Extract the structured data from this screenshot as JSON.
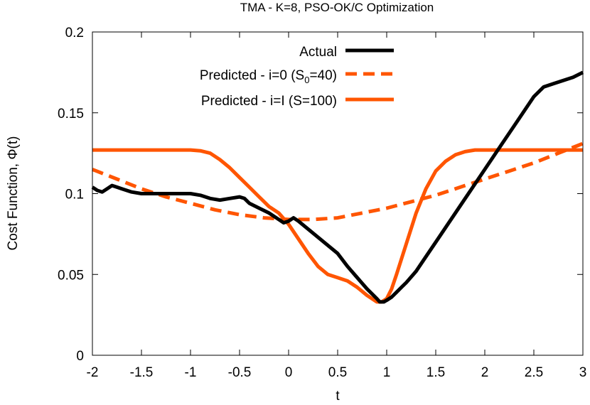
{
  "chart_data": {
    "type": "line",
    "title": "TMA - K=8, PSO-OK/C Optimization",
    "xlabel": "t",
    "ylabel": "Cost Function, Φ(t)",
    "xlim": [
      -2,
      3
    ],
    "ylim": [
      0,
      0.2
    ],
    "x_ticks": [
      -2,
      -1.5,
      -1,
      -0.5,
      0,
      0.5,
      1,
      1.5,
      2,
      2.5,
      3
    ],
    "x_tick_labels": [
      "-2",
      "-1.5",
      "-1",
      "-0.5",
      "0",
      "0.5",
      "1",
      "1.5",
      "2",
      "2.5",
      "3"
    ],
    "y_ticks": [
      0,
      0.05,
      0.1,
      0.15,
      0.2
    ],
    "y_tick_labels": [
      "0",
      "0.05",
      "0.1",
      "0.15",
      "0.2"
    ],
    "grid": false,
    "legend_position": "top-right",
    "series": [
      {
        "name": "Actual",
        "color": "#000000",
        "style": "solid",
        "x": [
          -2.0,
          -1.95,
          -1.9,
          -1.85,
          -1.8,
          -1.75,
          -1.7,
          -1.6,
          -1.5,
          -1.4,
          -1.3,
          -1.2,
          -1.1,
          -1.0,
          -0.9,
          -0.8,
          -0.7,
          -0.6,
          -0.5,
          -0.45,
          -0.4,
          -0.3,
          -0.2,
          -0.1,
          -0.05,
          0.0,
          0.05,
          0.1,
          0.2,
          0.3,
          0.4,
          0.5,
          0.6,
          0.7,
          0.8,
          0.9,
          0.93,
          0.97,
          1.0,
          1.05,
          1.1,
          1.15,
          1.2,
          1.3,
          1.4,
          1.5,
          1.6,
          1.7,
          1.8,
          1.9,
          2.0,
          2.1,
          2.2,
          2.3,
          2.4,
          2.5,
          2.6,
          2.7,
          2.8,
          2.9,
          3.0
        ],
        "y": [
          0.104,
          0.102,
          0.101,
          0.103,
          0.105,
          0.104,
          0.103,
          0.101,
          0.1,
          0.1,
          0.1,
          0.1,
          0.1,
          0.1,
          0.099,
          0.097,
          0.096,
          0.097,
          0.098,
          0.097,
          0.094,
          0.091,
          0.088,
          0.084,
          0.082,
          0.083,
          0.085,
          0.083,
          0.078,
          0.073,
          0.068,
          0.063,
          0.055,
          0.048,
          0.041,
          0.035,
          0.033,
          0.033,
          0.034,
          0.036,
          0.039,
          0.042,
          0.045,
          0.052,
          0.061,
          0.07,
          0.079,
          0.088,
          0.097,
          0.106,
          0.115,
          0.124,
          0.133,
          0.142,
          0.151,
          0.16,
          0.166,
          0.168,
          0.17,
          0.172,
          0.175
        ]
      },
      {
        "name": "Predicted - i=0 (S₀=40)",
        "color": "#ff5500",
        "style": "dashed",
        "x": [
          -2.0,
          -1.75,
          -1.5,
          -1.25,
          -1.0,
          -0.75,
          -0.5,
          -0.25,
          0.0,
          0.25,
          0.5,
          0.75,
          1.0,
          1.25,
          1.5,
          1.75,
          2.0,
          2.25,
          2.5,
          2.75,
          3.0
        ],
        "y": [
          0.115,
          0.109,
          0.103,
          0.098,
          0.094,
          0.09,
          0.087,
          0.085,
          0.084,
          0.084,
          0.085,
          0.088,
          0.091,
          0.095,
          0.099,
          0.104,
          0.109,
          0.114,
          0.119,
          0.125,
          0.131
        ]
      },
      {
        "name": "Predicted - i=I (S=100)",
        "color": "#ff5500",
        "style": "solid",
        "x": [
          -2.0,
          -1.5,
          -1.0,
          -0.9,
          -0.8,
          -0.7,
          -0.6,
          -0.5,
          -0.4,
          -0.3,
          -0.2,
          -0.1,
          0.0,
          0.1,
          0.2,
          0.3,
          0.4,
          0.5,
          0.6,
          0.7,
          0.8,
          0.9,
          0.95,
          1.0,
          1.05,
          1.1,
          1.2,
          1.3,
          1.4,
          1.5,
          1.6,
          1.7,
          1.8,
          1.9,
          2.0,
          2.2,
          2.5,
          2.8,
          3.0
        ],
        "y": [
          0.127,
          0.127,
          0.127,
          0.1265,
          0.125,
          0.121,
          0.116,
          0.11,
          0.104,
          0.098,
          0.092,
          0.088,
          0.081,
          0.072,
          0.063,
          0.055,
          0.05,
          0.048,
          0.046,
          0.042,
          0.037,
          0.033,
          0.033,
          0.035,
          0.041,
          0.05,
          0.069,
          0.088,
          0.103,
          0.114,
          0.12,
          0.124,
          0.126,
          0.127,
          0.127,
          0.127,
          0.127,
          0.127,
          0.127
        ]
      }
    ]
  },
  "legend": {
    "entries": [
      {
        "label": "Actual",
        "color": "#000000",
        "style": "solid"
      },
      {
        "label_prefix": "Predicted - i=0 (S",
        "label_sub": "0",
        "label_suffix": "=40)",
        "color": "#ff5500",
        "style": "dashed"
      },
      {
        "label": "Predicted - i=I (S=100)",
        "color": "#ff5500",
        "style": "solid"
      }
    ]
  }
}
